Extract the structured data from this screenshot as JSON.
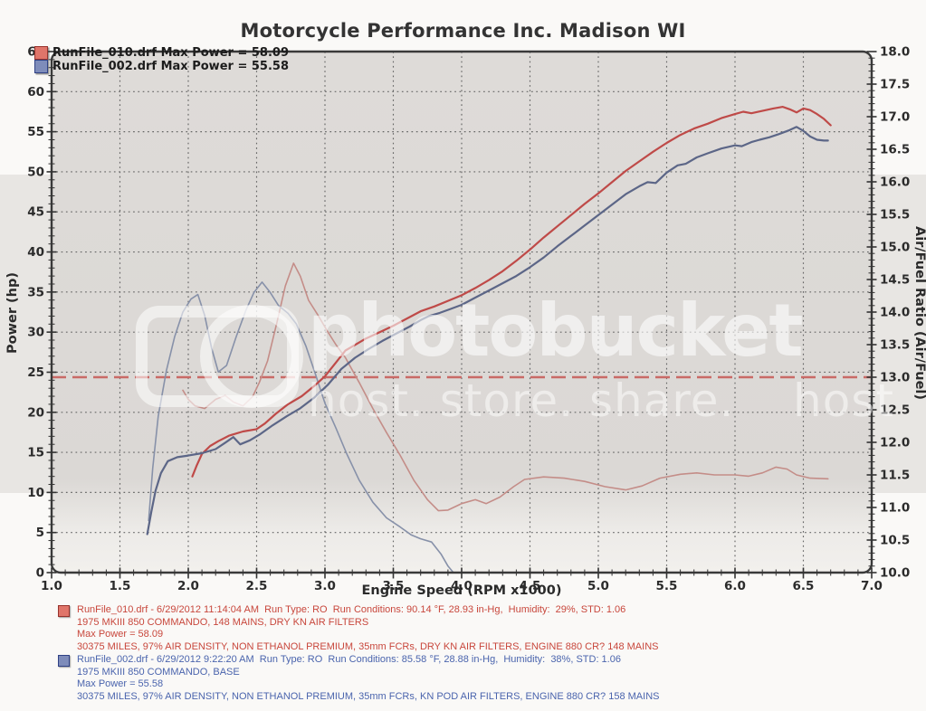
{
  "title": "Motorcycle Performance Inc. Madison WI",
  "legend": {
    "runs": [
      {
        "label": "RunFile_010.drf Max Power = 58.09",
        "swatch": "#e0756a",
        "swatch_border": "#96322c"
      },
      {
        "label": "RunFile_002.drf Max Power = 55.58",
        "swatch": "#7e8cba",
        "swatch_border": "#2f4185"
      }
    ]
  },
  "watermark": {
    "brand": "photobucket",
    "tagline": "host. store. share.",
    "fragment": "host"
  },
  "chart_data": {
    "type": "line",
    "title": "Motorcycle Performance Inc. Madison WI",
    "xlabel": "Engine Speed (RPM x1000)",
    "ylabel_left": "Power (hp)",
    "ylabel_right": "Air/Fuel Ratio (Air/Fuel)",
    "xlim": [
      1.0,
      7.0
    ],
    "ylim_left": [
      0,
      65
    ],
    "ylim_right": [
      10.0,
      18.0
    ],
    "x_tick_labels": [
      "1.0",
      "1.5",
      "2.0",
      "2.5",
      "3.0",
      "3.5",
      "4.0",
      "4.5",
      "5.0",
      "5.5",
      "6.0",
      "6.5",
      "7.0"
    ],
    "left_tick_labels": [
      "0",
      "5",
      "10",
      "15",
      "20",
      "25",
      "30",
      "35",
      "40",
      "45",
      "50",
      "55",
      "60",
      "65"
    ],
    "right_tick_labels": [
      "10.0",
      "10.5",
      "11.0",
      "11.5",
      "12.0",
      "12.5",
      "13.0",
      "13.5",
      "14.0",
      "14.5",
      "15.0",
      "15.5",
      "16.0",
      "16.5",
      "17.0",
      "17.5",
      "18.0"
    ],
    "x_minor_step": 0.1,
    "left_minor_step": 1,
    "right_minor_step": 0.1,
    "grid": "dotted, horizontal every 5 hp, vertical every 0.5 RPM",
    "target_line": {
      "axis": "right",
      "value": 13.0,
      "style": "dashed",
      "color": "#c96a66"
    },
    "axis_color": "#3a3a3a",
    "grid_color": "#666666",
    "series": [
      {
        "name": "RunFile_010 AFR",
        "axis": "right",
        "color": "#c48d88",
        "width": 1.6,
        "points": [
          [
            1.96,
            12.8
          ],
          [
            2.0,
            12.66
          ],
          [
            2.05,
            12.56
          ],
          [
            2.12,
            12.52
          ],
          [
            2.2,
            12.66
          ],
          [
            2.27,
            12.72
          ],
          [
            2.33,
            12.62
          ],
          [
            2.4,
            12.56
          ],
          [
            2.47,
            12.7
          ],
          [
            2.52,
            12.92
          ],
          [
            2.58,
            13.25
          ],
          [
            2.65,
            13.85
          ],
          [
            2.71,
            14.4
          ],
          [
            2.77,
            14.75
          ],
          [
            2.82,
            14.55
          ],
          [
            2.88,
            14.18
          ],
          [
            2.95,
            13.95
          ],
          [
            3.02,
            13.7
          ],
          [
            3.08,
            13.5
          ],
          [
            3.15,
            13.3
          ],
          [
            3.25,
            12.92
          ],
          [
            3.35,
            12.52
          ],
          [
            3.45,
            12.15
          ],
          [
            3.55,
            11.8
          ],
          [
            3.65,
            11.42
          ],
          [
            3.75,
            11.12
          ],
          [
            3.83,
            10.95
          ],
          [
            3.9,
            10.96
          ],
          [
            4.0,
            11.06
          ],
          [
            4.1,
            11.12
          ],
          [
            4.18,
            11.06
          ],
          [
            4.28,
            11.16
          ],
          [
            4.38,
            11.32
          ],
          [
            4.46,
            11.43
          ],
          [
            4.6,
            11.47
          ],
          [
            4.75,
            11.45
          ],
          [
            4.9,
            11.4
          ],
          [
            5.05,
            11.32
          ],
          [
            5.2,
            11.27
          ],
          [
            5.32,
            11.33
          ],
          [
            5.45,
            11.45
          ],
          [
            5.6,
            11.51
          ],
          [
            5.72,
            11.53
          ],
          [
            5.85,
            11.5
          ],
          [
            6.0,
            11.5
          ],
          [
            6.1,
            11.48
          ],
          [
            6.2,
            11.53
          ],
          [
            6.3,
            11.62
          ],
          [
            6.38,
            11.59
          ],
          [
            6.45,
            11.5
          ],
          [
            6.55,
            11.45
          ],
          [
            6.68,
            11.44
          ]
        ]
      },
      {
        "name": "RunFile_002 AFR",
        "axis": "right",
        "color": "#8791a9",
        "width": 1.6,
        "points": [
          [
            1.71,
            10.8
          ],
          [
            1.74,
            11.6
          ],
          [
            1.78,
            12.4
          ],
          [
            1.84,
            13.1
          ],
          [
            1.9,
            13.62
          ],
          [
            1.96,
            14.0
          ],
          [
            2.02,
            14.2
          ],
          [
            2.07,
            14.27
          ],
          [
            2.12,
            13.95
          ],
          [
            2.17,
            13.45
          ],
          [
            2.22,
            13.08
          ],
          [
            2.28,
            13.18
          ],
          [
            2.35,
            13.62
          ],
          [
            2.42,
            14.02
          ],
          [
            2.48,
            14.3
          ],
          [
            2.54,
            14.46
          ],
          [
            2.6,
            14.3
          ],
          [
            2.66,
            14.1
          ],
          [
            2.73,
            13.98
          ],
          [
            2.79,
            13.82
          ],
          [
            2.86,
            13.48
          ],
          [
            2.93,
            13.05
          ],
          [
            3.0,
            12.6
          ],
          [
            3.08,
            12.22
          ],
          [
            3.16,
            11.82
          ],
          [
            3.25,
            11.42
          ],
          [
            3.35,
            11.08
          ],
          [
            3.45,
            10.84
          ],
          [
            3.55,
            10.7
          ],
          [
            3.63,
            10.58
          ],
          [
            3.7,
            10.52
          ],
          [
            3.78,
            10.47
          ],
          [
            3.85,
            10.28
          ],
          [
            3.9,
            10.1
          ],
          [
            3.94,
            10.0
          ]
        ]
      },
      {
        "name": "RunFile_010 Power",
        "axis": "left",
        "color": "#bf4a48",
        "width": 2.2,
        "points": [
          [
            2.03,
            12.0
          ],
          [
            2.06,
            13.3
          ],
          [
            2.1,
            14.8
          ],
          [
            2.16,
            15.8
          ],
          [
            2.22,
            16.4
          ],
          [
            2.3,
            17.1
          ],
          [
            2.4,
            17.6
          ],
          [
            2.5,
            17.9
          ],
          [
            2.56,
            18.6
          ],
          [
            2.64,
            19.8
          ],
          [
            2.73,
            21.0
          ],
          [
            2.83,
            22.0
          ],
          [
            2.93,
            23.4
          ],
          [
            3.0,
            24.5
          ],
          [
            3.08,
            26.2
          ],
          [
            3.15,
            27.7
          ],
          [
            3.22,
            28.4
          ],
          [
            3.3,
            29.2
          ],
          [
            3.4,
            30.0
          ],
          [
            3.5,
            30.8
          ],
          [
            3.6,
            31.7
          ],
          [
            3.7,
            32.6
          ],
          [
            3.8,
            33.2
          ],
          [
            3.9,
            33.9
          ],
          [
            4.0,
            34.6
          ],
          [
            4.1,
            35.5
          ],
          [
            4.2,
            36.5
          ],
          [
            4.3,
            37.6
          ],
          [
            4.4,
            38.9
          ],
          [
            4.5,
            40.3
          ],
          [
            4.6,
            41.8
          ],
          [
            4.7,
            43.2
          ],
          [
            4.8,
            44.6
          ],
          [
            4.9,
            46.0
          ],
          [
            5.0,
            47.3
          ],
          [
            5.1,
            48.7
          ],
          [
            5.2,
            50.1
          ],
          [
            5.3,
            51.3
          ],
          [
            5.4,
            52.5
          ],
          [
            5.5,
            53.6
          ],
          [
            5.6,
            54.6
          ],
          [
            5.7,
            55.4
          ],
          [
            5.8,
            56.0
          ],
          [
            5.9,
            56.7
          ],
          [
            6.0,
            57.2
          ],
          [
            6.06,
            57.5
          ],
          [
            6.12,
            57.3
          ],
          [
            6.2,
            57.6
          ],
          [
            6.28,
            57.9
          ],
          [
            6.35,
            58.1
          ],
          [
            6.4,
            57.8
          ],
          [
            6.45,
            57.4
          ],
          [
            6.5,
            57.9
          ],
          [
            6.55,
            57.7
          ],
          [
            6.6,
            57.2
          ],
          [
            6.65,
            56.6
          ],
          [
            6.7,
            55.8
          ]
        ]
      },
      {
        "name": "RunFile_002 Power",
        "axis": "left",
        "color": "#5c6687",
        "width": 2.2,
        "points": [
          [
            1.7,
            4.8
          ],
          [
            1.73,
            7.6
          ],
          [
            1.76,
            10.2
          ],
          [
            1.8,
            12.4
          ],
          [
            1.85,
            13.9
          ],
          [
            1.92,
            14.4
          ],
          [
            2.0,
            14.6
          ],
          [
            2.1,
            14.9
          ],
          [
            2.2,
            15.4
          ],
          [
            2.27,
            16.2
          ],
          [
            2.33,
            16.9
          ],
          [
            2.38,
            16.0
          ],
          [
            2.45,
            16.5
          ],
          [
            2.52,
            17.2
          ],
          [
            2.62,
            18.4
          ],
          [
            2.72,
            19.5
          ],
          [
            2.82,
            20.5
          ],
          [
            2.92,
            21.8
          ],
          [
            3.02,
            23.4
          ],
          [
            3.12,
            25.4
          ],
          [
            3.22,
            26.8
          ],
          [
            3.32,
            27.9
          ],
          [
            3.42,
            28.9
          ],
          [
            3.52,
            29.8
          ],
          [
            3.62,
            30.7
          ],
          [
            3.7,
            31.5
          ],
          [
            3.76,
            32.0
          ],
          [
            3.84,
            32.4
          ],
          [
            3.92,
            32.9
          ],
          [
            4.0,
            33.4
          ],
          [
            4.1,
            34.3
          ],
          [
            4.2,
            35.2
          ],
          [
            4.3,
            36.1
          ],
          [
            4.4,
            37.0
          ],
          [
            4.5,
            38.1
          ],
          [
            4.6,
            39.3
          ],
          [
            4.7,
            40.7
          ],
          [
            4.8,
            42.0
          ],
          [
            4.9,
            43.3
          ],
          [
            5.0,
            44.6
          ],
          [
            5.1,
            45.9
          ],
          [
            5.2,
            47.2
          ],
          [
            5.3,
            48.2
          ],
          [
            5.36,
            48.7
          ],
          [
            5.42,
            48.6
          ],
          [
            5.5,
            49.9
          ],
          [
            5.58,
            50.8
          ],
          [
            5.64,
            51.0
          ],
          [
            5.72,
            51.8
          ],
          [
            5.8,
            52.3
          ],
          [
            5.9,
            52.9
          ],
          [
            6.0,
            53.3
          ],
          [
            6.05,
            53.2
          ],
          [
            6.12,
            53.7
          ],
          [
            6.18,
            54.0
          ],
          [
            6.25,
            54.3
          ],
          [
            6.32,
            54.7
          ],
          [
            6.4,
            55.2
          ],
          [
            6.45,
            55.6
          ],
          [
            6.5,
            55.1
          ],
          [
            6.55,
            54.4
          ],
          [
            6.6,
            54.0
          ],
          [
            6.65,
            53.9
          ],
          [
            6.68,
            53.9
          ]
        ]
      }
    ]
  },
  "runs_info": [
    {
      "text_color": "#c8473c",
      "swatch": "#e0756a",
      "swatch_border": "#96322c",
      "lines": [
        "RunFile_010.drf - 6/29/2012 11:14:04 AM  Run Type: RO  Run Conditions: 90.14 °F, 28.93 in-Hg,  Humidity:  29%, STD: 1.06",
        "1975 MKIII 850 COMMANDO, 148 MAINS, DRY KN AIR FILTERS",
        "Max Power = 58.09",
        "30375 MILES, 97% AIR DENSITY, NON ETHANOL PREMIUM, 35mm FCRs, DRY KN AIR FILTERS, ENGINE 880 CR? 148 MAINS"
      ]
    },
    {
      "text_color": "#4a64ad",
      "swatch": "#7e8cba",
      "swatch_border": "#2f4185",
      "lines": [
        "RunFile_002.drf - 6/29/2012 9:22:20 AM  Run Type: RO  Run Conditions: 85.58 °F, 28.88 in-Hg,  Humidity:  38%, STD: 1.06",
        "1975 MKIII 850 COMMANDO, BASE",
        "Max Power = 55.58",
        "30375 MILES, 97% AIR DENSITY, NON ETHANOL PREMIUM, 35mm FCRs, KN POD AIR FILTERS, ENGINE 880 CR? 158 MAINS"
      ]
    }
  ]
}
